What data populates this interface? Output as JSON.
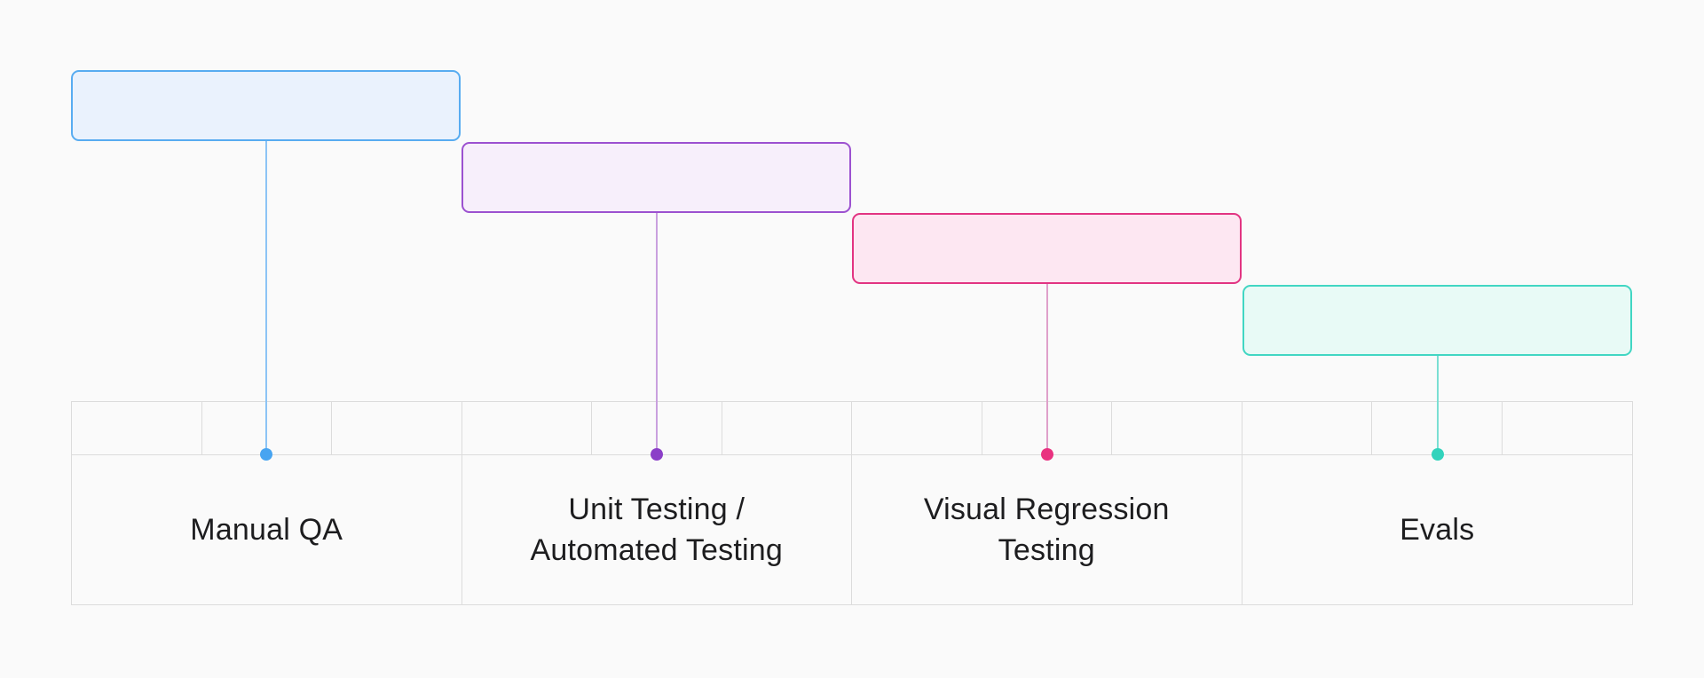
{
  "page": {
    "background_color": "#fafafa"
  },
  "table": {
    "border_color": "#dcdcdc",
    "columns": 4,
    "ticks_per_column": 3
  },
  "tasks": [
    {
      "label": "Manual QA",
      "fill_color": "#eaf2fd",
      "border_color": "#58acf1",
      "line_color": "#8cc4f5",
      "dot_color": "#47a4f1",
      "column": 1
    },
    {
      "label": "Unit Testing /\nAutomated Testing",
      "fill_color": "#f7effb",
      "border_color": "#9c51d0",
      "line_color": "#c9a0de",
      "dot_color": "#8b3fc8",
      "column": 2
    },
    {
      "label": "Visual Regression\nTesting",
      "fill_color": "#fde7f2",
      "border_color": "#e23482",
      "line_color": "#dfa0ca",
      "dot_color": "#e93280",
      "column": 3
    },
    {
      "label": "Evals",
      "fill_color": "#e8faf6",
      "border_color": "#41d6c3",
      "line_color": "#7adfd3",
      "dot_color": "#32d3bc",
      "column": 4
    }
  ],
  "chart_data": {
    "type": "bar",
    "subtype": "gantt-sequence",
    "categories": [
      "Manual QA",
      "Unit Testing / Automated Testing",
      "Visual Regression Testing",
      "Evals"
    ],
    "series": [
      {
        "name": "timeline-span-in-columns",
        "values": [
          [
            0,
            1
          ],
          [
            1,
            2
          ],
          [
            2,
            3
          ],
          [
            3,
            4
          ]
        ]
      }
    ],
    "title": "",
    "xlabel": "",
    "ylabel": "",
    "x_axis": {
      "range": [
        0,
        4
      ],
      "ticks_per_column": 3,
      "tick_labels": []
    },
    "legend": "none",
    "grid": "table-cells"
  }
}
